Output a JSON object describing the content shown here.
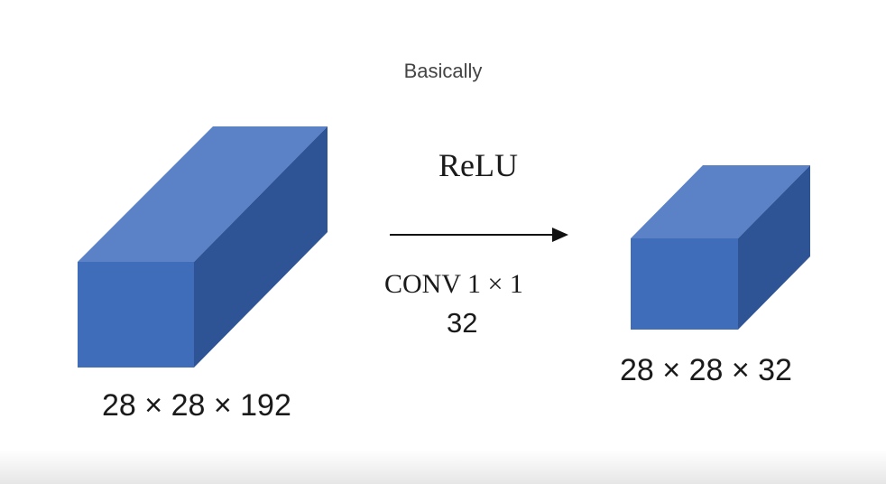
{
  "caption": "Basically",
  "activation_label": "ReLU",
  "operation_label": "CONV 1 × 1",
  "filter_count": "32",
  "input_volume": {
    "dimensions_label": "28 × 28 × 192"
  },
  "output_volume": {
    "dimensions_label": "28 × 28 × 32"
  },
  "colors": {
    "cube_front": "#3f6db9",
    "cube_top": "#5b82c7",
    "cube_side": "#2e5496",
    "arrow": "#111111"
  },
  "icons": {
    "arrow": "arrow-right-icon"
  }
}
